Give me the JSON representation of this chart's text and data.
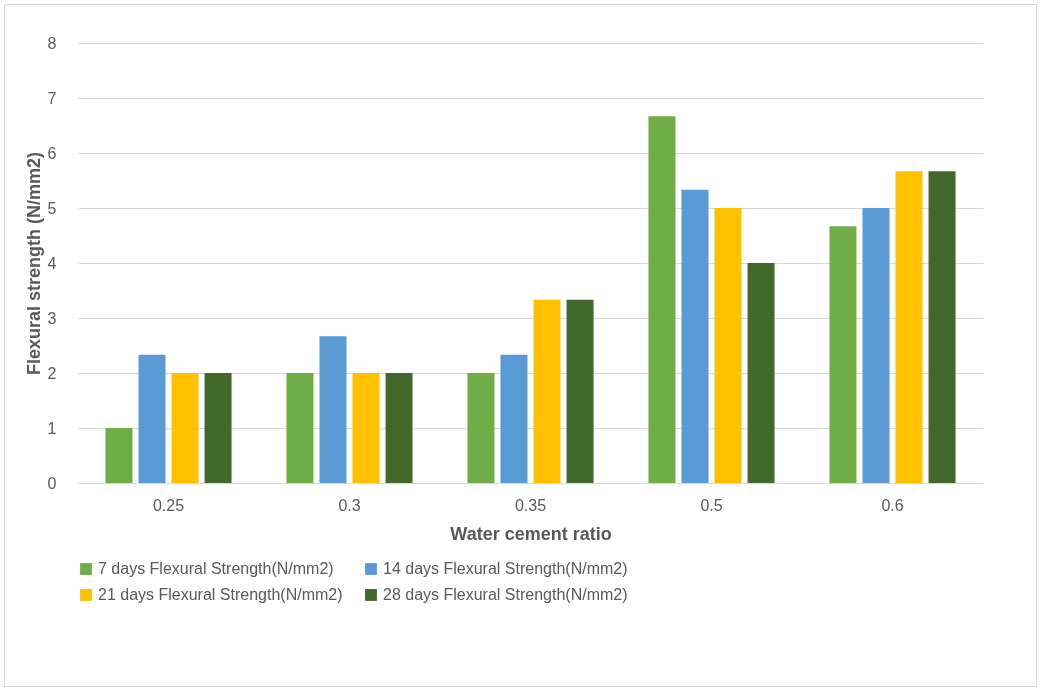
{
  "chart_data": {
    "type": "bar",
    "xlabel": "Water cement ratio",
    "ylabel": "Flexural strength (N/mm2)",
    "categories": [
      "0.25",
      "0.3",
      "0.35",
      "0.5",
      "0.6"
    ],
    "series": [
      {
        "name": "7 days Flexural Strength(N/mm2)",
        "color": "#70ad47",
        "values": [
          1,
          2,
          2,
          6.67,
          4.67
        ]
      },
      {
        "name": "14 days Flexural Strength(N/mm2)",
        "color": "#5b9bd5",
        "values": [
          2.33,
          2.67,
          2.33,
          5.33,
          5
        ]
      },
      {
        "name": "21 days Flexural Strength(N/mm2)",
        "color": "#ffc000",
        "values": [
          2,
          2,
          3.33,
          5,
          5.67
        ]
      },
      {
        "name": "28 days Flexural Strength(N/mm2)",
        "color": "#43682b",
        "values": [
          2,
          2,
          3.33,
          4,
          5.67
        ]
      }
    ],
    "ylim": [
      0,
      8
    ],
    "yticks": [
      0,
      1,
      2,
      3,
      4,
      5,
      6,
      7,
      8
    ],
    "grid": "y",
    "legend": "bottom"
  }
}
